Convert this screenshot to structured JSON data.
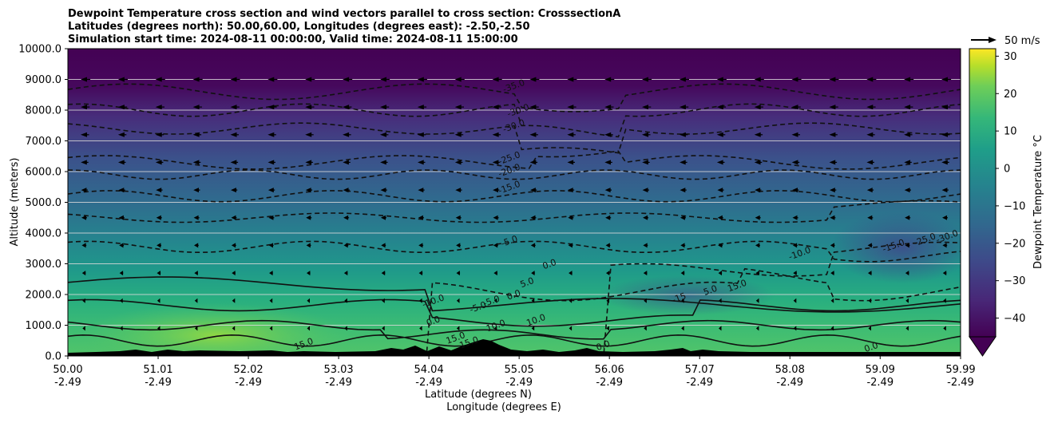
{
  "chart_data": {
    "type": "heatmap",
    "title_lines": [
      "Dewpoint Temperature cross section and wind vectors parallel to cross section: CrosssectionA",
      "Latitudes (degrees north): 50.00,60.00, Longitudes (degrees east): -2.50,-2.50",
      "Simulation start time: 2024-08-11 00:00:00, Valid time: 2024-08-11 15:00:00"
    ],
    "ylabel": "Altitude (meters)",
    "xlabel_lines": [
      "Latitude (degrees N)",
      "Longitude (degrees E)"
    ],
    "ylim": [
      0,
      10000
    ],
    "yticks": [
      "0.0",
      "1000.0",
      "2000.0",
      "3000.0",
      "4000.0",
      "5000.0",
      "6000.0",
      "7000.0",
      "8000.0",
      "9000.0",
      "10000.0"
    ],
    "xticks": [
      {
        "lat": "50.00",
        "lon": "-2.49"
      },
      {
        "lat": "51.01",
        "lon": "-2.49"
      },
      {
        "lat": "52.02",
        "lon": "-2.49"
      },
      {
        "lat": "53.03",
        "lon": "-2.49"
      },
      {
        "lat": "54.04",
        "lon": "-2.49"
      },
      {
        "lat": "55.05",
        "lon": "-2.49"
      },
      {
        "lat": "56.06",
        "lon": "-2.49"
      },
      {
        "lat": "57.07",
        "lon": "-2.49"
      },
      {
        "lat": "58.08",
        "lon": "-2.49"
      },
      {
        "lat": "59.09",
        "lon": "-2.49"
      },
      {
        "lat": "59.99",
        "lon": "-2.49"
      }
    ],
    "colorbar": {
      "label": "Dewpoint Temperature °C",
      "min": -45,
      "max": 32,
      "ticks": [
        "30",
        "20",
        "10",
        "0",
        "−10",
        "−20",
        "−30",
        "−40"
      ],
      "colormap": "viridis",
      "extend": "min"
    },
    "quiver_key": {
      "label": "50 m/s"
    },
    "contour_labels": [
      {
        "text": "-35.0",
        "lat": 55.0,
        "alt": 8700
      },
      {
        "text": "-30.0",
        "lat": 55.05,
        "alt": 7900
      },
      {
        "text": "-30.0",
        "lat": 55.0,
        "alt": 7400
      },
      {
        "text": "-25.0",
        "lat": 54.95,
        "alt": 6350
      },
      {
        "text": "-20.0",
        "lat": 54.95,
        "alt": 5950
      },
      {
        "text": "-15.0",
        "lat": 54.95,
        "alt": 5400
      },
      {
        "text": "-5.0",
        "lat": 54.95,
        "alt": 3650
      },
      {
        "text": "0.0",
        "lat": 55.4,
        "alt": 2900
      },
      {
        "text": "-10.0",
        "lat": 58.2,
        "alt": 3250
      },
      {
        "text": "-15.0",
        "lat": 59.25,
        "alt": 3500
      },
      {
        "text": "-25.0",
        "lat": 59.6,
        "alt": 3700
      },
      {
        "text": "-30.0",
        "lat": 59.85,
        "alt": 3800
      },
      {
        "text": "-10.0",
        "lat": 54.1,
        "alt": 1700
      },
      {
        "text": "5.0",
        "lat": 55.15,
        "alt": 2300
      },
      {
        "text": "-5.0",
        "lat": 54.75,
        "alt": 1700
      },
      {
        "text": "0.0",
        "lat": 55.0,
        "alt": 1900
      },
      {
        "text": "-5.0",
        "lat": 54.6,
        "alt": 1500
      },
      {
        "text": "0.0",
        "lat": 54.1,
        "alt": 1050
      },
      {
        "text": "10.0",
        "lat": 55.25,
        "alt": 1080
      },
      {
        "text": "10.0",
        "lat": 54.8,
        "alt": 900
      },
      {
        "text": "15.0",
        "lat": 52.65,
        "alt": 300
      },
      {
        "text": "15.0",
        "lat": 54.35,
        "alt": 500
      },
      {
        "text": "15.0",
        "lat": 54.5,
        "alt": 350
      },
      {
        "text": "0.0",
        "lat": 56.0,
        "alt": 250
      },
      {
        "text": "-15",
        "lat": 56.85,
        "alt": 1800
      },
      {
        "text": "5.0",
        "lat": 57.2,
        "alt": 2050
      },
      {
        "text": "15.0",
        "lat": 57.5,
        "alt": 2200
      },
      {
        "text": "0.0",
        "lat": 59.0,
        "alt": 200
      }
    ]
  }
}
